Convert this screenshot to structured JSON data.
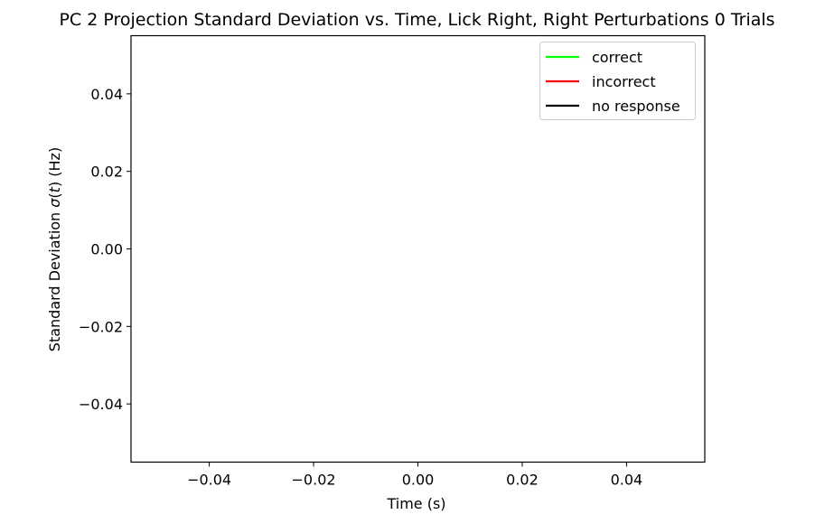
{
  "chart_data": {
    "type": "line",
    "title": "PC 2 Projection Standard Deviation vs. Time, Lick Right, Right  Perturbations 0 Trials",
    "xlabel": "Time (s)",
    "ylabel": {
      "prefix": "Standard Deviation ",
      "sigma": "σ",
      "open": "(",
      "t": "t",
      "close": ")",
      "unit": " (Hz)"
    },
    "xlim": [
      -0.055,
      0.055
    ],
    "ylim": [
      -0.055,
      0.055
    ],
    "xticks": [
      {
        "value": -0.04,
        "label": "−0.04"
      },
      {
        "value": -0.02,
        "label": "−0.02"
      },
      {
        "value": 0.0,
        "label": "0.00"
      },
      {
        "value": 0.02,
        "label": "0.02"
      },
      {
        "value": 0.04,
        "label": "0.04"
      }
    ],
    "yticks": [
      {
        "value": -0.04,
        "label": "−0.04"
      },
      {
        "value": -0.02,
        "label": "−0.02"
      },
      {
        "value": 0.0,
        "label": "0.00"
      },
      {
        "value": 0.02,
        "label": "0.02"
      },
      {
        "value": 0.04,
        "label": "0.04"
      }
    ],
    "grid": false,
    "legend_position": "top-right",
    "series": [
      {
        "name": "correct",
        "color": "#00ff00",
        "x": [],
        "y": []
      },
      {
        "name": "incorrect",
        "color": "#ff0000",
        "x": [],
        "y": []
      },
      {
        "name": "no response",
        "color": "#000000",
        "x": [],
        "y": []
      }
    ]
  }
}
